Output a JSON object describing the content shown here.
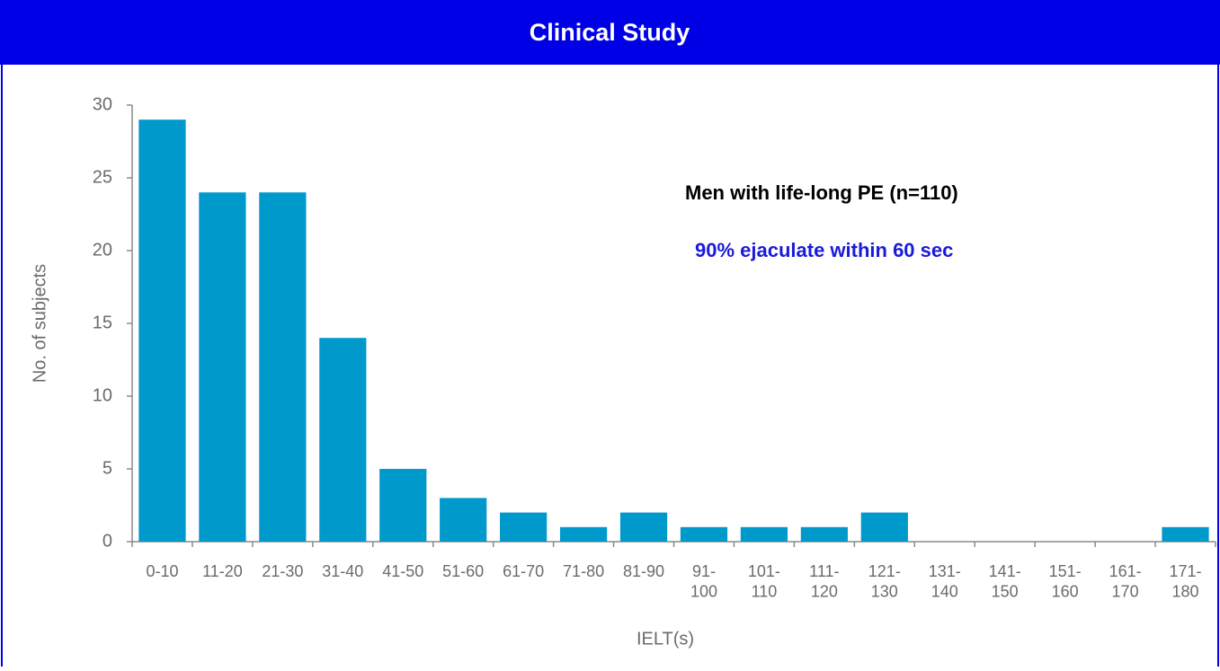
{
  "header": {
    "title": "Clinical Study"
  },
  "chart_data": {
    "type": "bar",
    "categories": [
      "0-10",
      "11-20",
      "21-30",
      "31-40",
      "41-50",
      "51-60",
      "61-70",
      "71-80",
      "81-90",
      "91-\n100",
      "101-\n110",
      "111-\n120",
      "121-\n130",
      "131-\n140",
      "141-\n150",
      "151-\n160",
      "161-\n170",
      "171-\n180"
    ],
    "values": [
      29,
      24,
      24,
      14,
      5,
      3,
      2,
      1,
      2,
      1,
      1,
      1,
      2,
      0,
      0,
      0,
      0,
      1
    ],
    "color": "#0099cc",
    "ylim": [
      0,
      30
    ],
    "yticks": [
      0,
      5,
      10,
      15,
      20,
      25,
      30
    ],
    "grid": false,
    "x_label": "IELT(s)",
    "y_label": "No. of subjects",
    "annotations": [
      "Men with life-long PE (n=110)",
      "90% ejaculate within 60 sec"
    ]
  }
}
